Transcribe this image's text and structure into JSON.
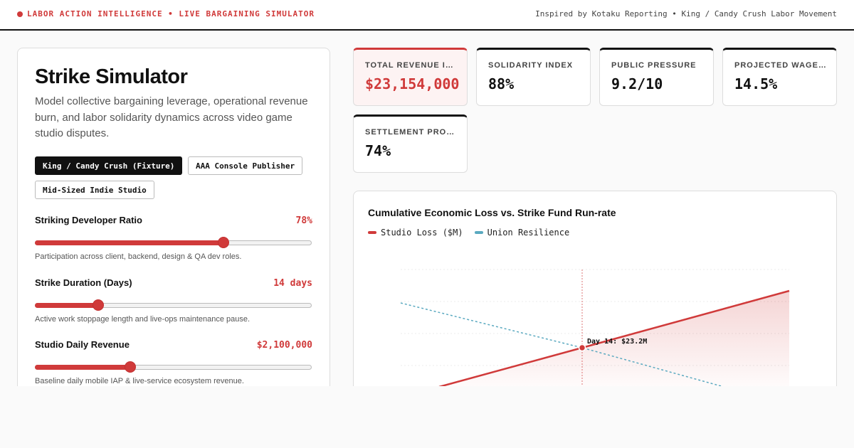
{
  "header": {
    "brand": "LABOR ACTION INTELLIGENCE • LIVE BARGAINING SIMULATOR",
    "credit": "Inspired by Kotaku Reporting • King / Candy Crush Labor Movement"
  },
  "panel": {
    "title": "Strike Simulator",
    "description": "Model collective bargaining leverage, operational revenue burn, and labor solidarity dynamics across video game studio disputes.",
    "presets": [
      {
        "label": "King / Candy Crush (Fixture)",
        "active": true
      },
      {
        "label": "AAA Console Publisher",
        "active": false
      },
      {
        "label": "Mid-Sized Indie Studio",
        "active": false
      }
    ],
    "controls": [
      {
        "label": "Striking Developer Ratio",
        "value": "78%",
        "level": 0.68,
        "help": "Participation across client, backend, design & QA dev roles."
      },
      {
        "label": "Strike Duration (Days)",
        "value": "14 days",
        "level": 0.23,
        "help": "Active work stoppage length and live-ops maintenance pause."
      },
      {
        "label": "Studio Daily Revenue",
        "value": "$2,100,000",
        "level": 0.345,
        "help": "Baseline daily mobile IAP & live-service ecosystem revenue."
      }
    ]
  },
  "kpis": [
    {
      "label": "TOTAL REVENUE IMPACT",
      "value": "$23,154,000",
      "highlight": true
    },
    {
      "label": "SOLIDARITY INDEX",
      "value": "88%",
      "highlight": false
    },
    {
      "label": "PUBLIC PRESSURE",
      "value": "9.2/10",
      "highlight": false
    },
    {
      "label": "PROJECTED WAGE INCREASE",
      "value": "14.5%",
      "highlight": false
    },
    {
      "label": "SETTLEMENT PROBABILITY",
      "value": "74%",
      "highlight": false
    }
  ],
  "chart": {
    "title": "Cumulative Economic Loss vs. Strike Fund Run-rate",
    "annotation": "Day 14: $23.2M",
    "colors": {
      "loss": "#d03a3a",
      "resilience": "#5aa9c0"
    }
  },
  "chart_data": {
    "type": "line",
    "series": [
      {
        "name": "Studio Loss ($M)"
      },
      {
        "name": "Union Resilience"
      }
    ],
    "marker": {
      "day": 14,
      "value": 23.2
    }
  }
}
